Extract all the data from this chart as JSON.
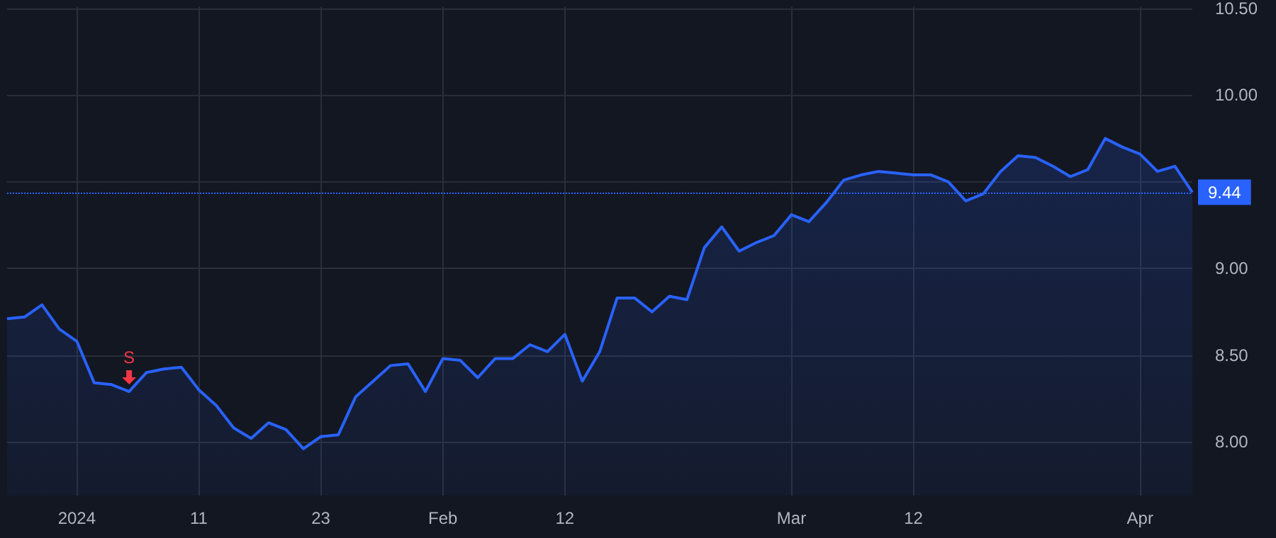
{
  "chart_data": {
    "type": "area",
    "categories": [
      null,
      null,
      null,
      null,
      "2024",
      null,
      null,
      null,
      null,
      null,
      null,
      "11",
      null,
      null,
      null,
      null,
      null,
      null,
      "23",
      null,
      null,
      null,
      null,
      null,
      null,
      "Feb",
      null,
      null,
      null,
      null,
      null,
      null,
      "12",
      null,
      null,
      null,
      null,
      null,
      null,
      null,
      null,
      null,
      null,
      null,
      null,
      "Mar",
      null,
      null,
      null,
      null,
      null,
      null,
      "12",
      null,
      null,
      null,
      null,
      null,
      null,
      null,
      null,
      null,
      null,
      null,
      null,
      "Apr",
      null,
      null,
      null
    ],
    "series": [
      {
        "color": "#2962ff",
        "values": [
          8.71,
          8.72,
          8.79,
          8.65,
          8.58,
          8.34,
          8.33,
          8.29,
          8.4,
          8.42,
          8.43,
          8.3,
          8.21,
          8.08,
          8.02,
          8.11,
          8.07,
          7.96,
          8.03,
          8.04,
          8.26,
          8.35,
          8.44,
          8.45,
          8.29,
          8.48,
          8.47,
          8.37,
          8.48,
          8.48,
          8.56,
          8.52,
          8.62,
          8.35,
          8.52,
          8.83,
          8.83,
          8.75,
          8.84,
          8.82,
          9.12,
          9.24,
          9.1,
          9.15,
          9.19,
          9.31,
          9.27,
          9.38,
          9.51,
          9.54,
          9.56,
          9.55,
          9.54,
          9.54,
          9.5,
          9.39,
          9.43,
          9.56,
          9.65,
          9.64,
          9.59,
          9.53,
          9.57,
          9.75,
          9.7,
          9.66,
          9.56,
          9.59,
          9.44
        ]
      }
    ],
    "ylim": [
      7.69,
      10.51
    ],
    "yticks": [
      {
        "value": 8,
        "label": "8.00"
      },
      {
        "value": 8.5,
        "label": "8.50"
      },
      {
        "value": 9,
        "label": "9.00"
      },
      {
        "value": 9.5,
        "label": null
      },
      {
        "value": 10,
        "label": "10.00"
      },
      {
        "value": 10.5,
        "label": "10.50"
      }
    ],
    "ref_lines": [
      {
        "axis": "y",
        "value": 9.44,
        "label": "9.44",
        "color": "#2962ff",
        "line_style": "dotted"
      }
    ],
    "annotations": [
      {
        "text": "S",
        "y": 8.29
      }
    ],
    "grid": true,
    "marker": "none",
    "line_style": "solid"
  }
}
